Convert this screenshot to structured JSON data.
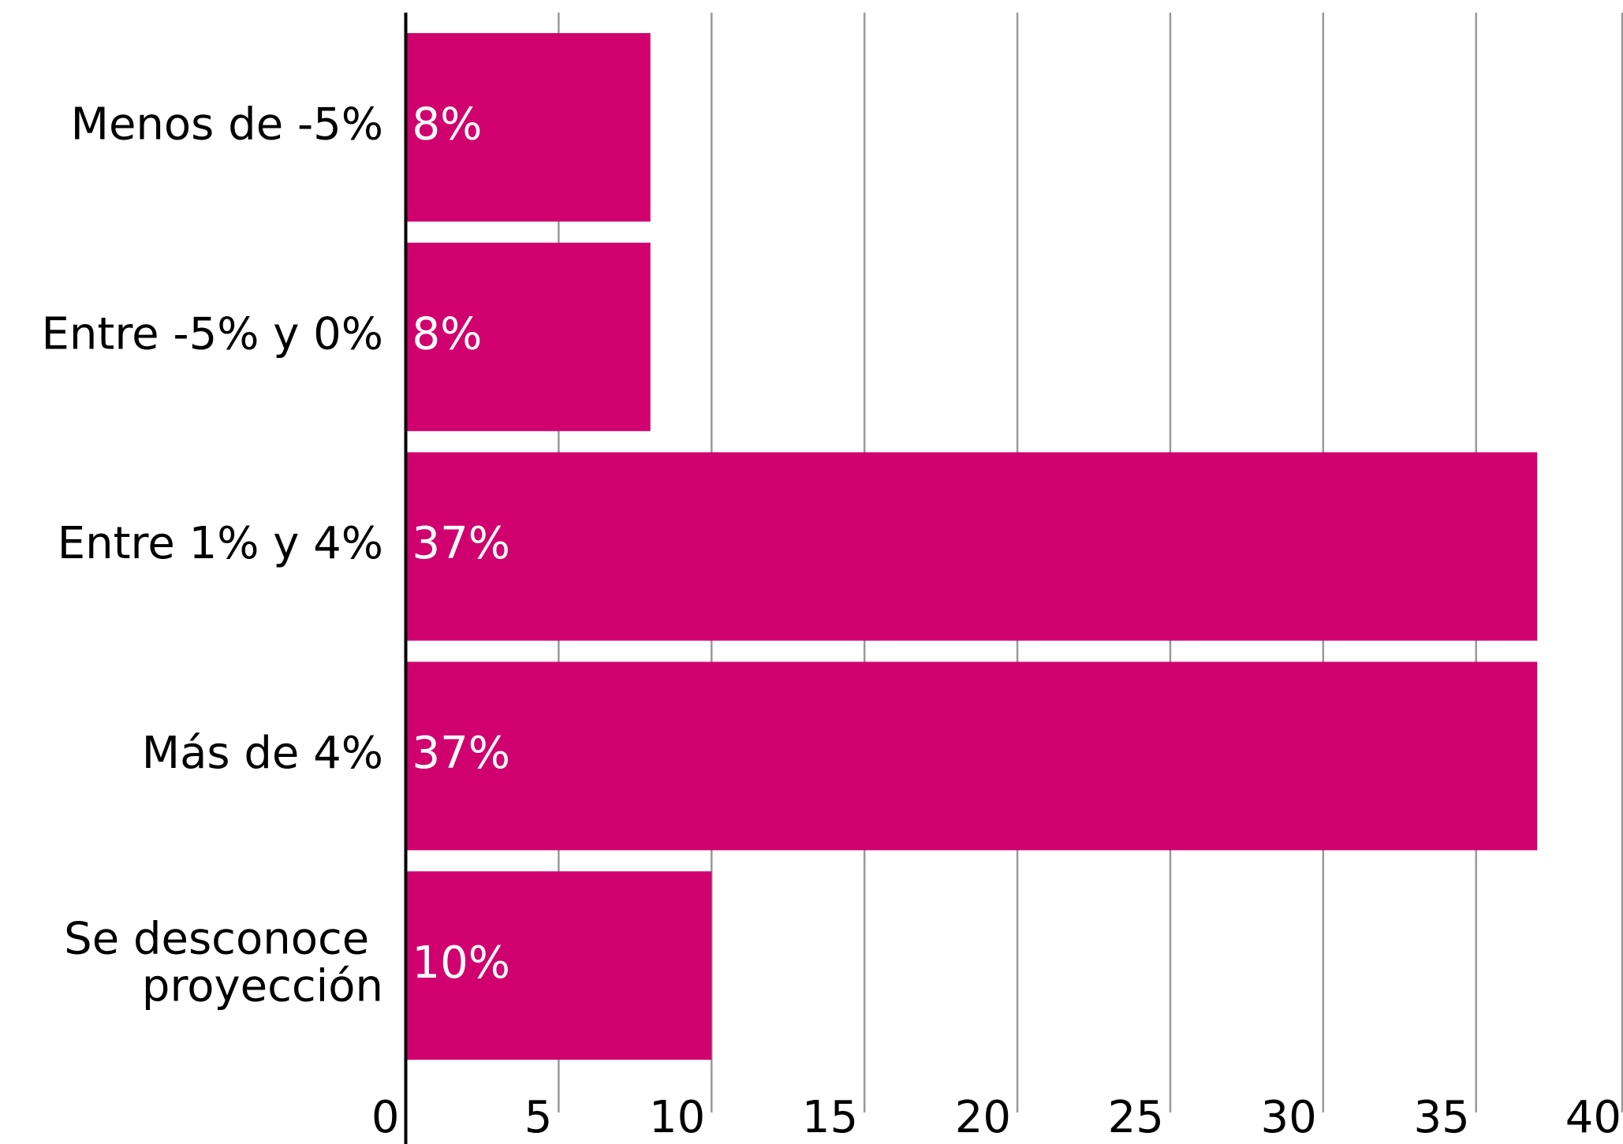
{
  "chart_data": {
    "type": "bar",
    "orientation": "horizontal",
    "categories": [
      "Menos de -5%",
      "Entre -5% y 0%",
      "Entre 1% y 4%",
      "Más de 4%",
      "Se desconoce proyección"
    ],
    "values": [
      8,
      8,
      37,
      37,
      10
    ],
    "value_labels": [
      "8%",
      "8%",
      "37%",
      "37%",
      "10%"
    ],
    "color": "#d0006f",
    "xlim": [
      0,
      40
    ],
    "xticks": [
      0,
      5,
      10,
      15,
      20,
      25,
      30,
      35,
      40
    ],
    "grid": true
  }
}
